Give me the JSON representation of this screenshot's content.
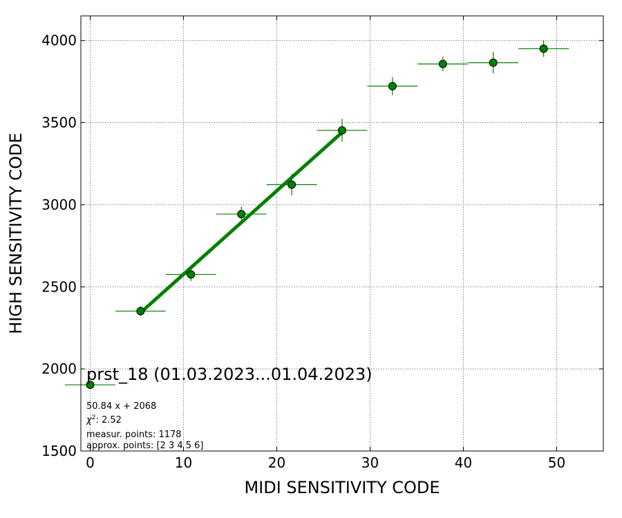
{
  "chart_data": {
    "type": "scatter",
    "xlabel": "MIDI SENSITIVITY CODE",
    "ylabel": "HIGH SENSITIVITY CODE",
    "xlim": [
      -1,
      55
    ],
    "ylim": [
      1500,
      4150
    ],
    "xticks": [
      0,
      10,
      20,
      30,
      40,
      50
    ],
    "yticks": [
      1500,
      2000,
      2500,
      3000,
      3500,
      4000
    ],
    "grid": true,
    "colors": {
      "marker": "#008000",
      "fit_line": "#008000",
      "error_bar": "#008000",
      "grid": "#808080"
    },
    "points": [
      {
        "x": 0.0,
        "y": 1903,
        "xerr": 2.7,
        "yerr": 0
      },
      {
        "x": 5.4,
        "y": 2352,
        "xerr": 2.7,
        "yerr": 30
      },
      {
        "x": 10.8,
        "y": 2575,
        "xerr": 2.7,
        "yerr": 40
      },
      {
        "x": 16.2,
        "y": 2943,
        "xerr": 2.7,
        "yerr": 45
      },
      {
        "x": 21.6,
        "y": 3122,
        "xerr": 2.7,
        "yerr": 65
      },
      {
        "x": 27.0,
        "y": 3453,
        "xerr": 2.7,
        "yerr": 70
      },
      {
        "x": 32.4,
        "y": 3722,
        "xerr": 2.7,
        "yerr": 55
      },
      {
        "x": 37.8,
        "y": 3857,
        "xerr": 2.7,
        "yerr": 45
      },
      {
        "x": 43.2,
        "y": 3865,
        "xerr": 2.7,
        "yerr": 65
      },
      {
        "x": 48.6,
        "y": 3950,
        "xerr": 2.7,
        "yerr": 50
      }
    ],
    "fit": {
      "slope": 50.84,
      "intercept": 2068,
      "x_range": [
        5.4,
        27.0
      ]
    },
    "annotations": {
      "title": "prst_18 (01.03.2023...01.04.2023)",
      "equation": "50.84 x + 2068",
      "chi2_symbol": "χ",
      "chi2_rest": ": 2.52",
      "measur_points": "measur. points: 1178",
      "approx_points": "approx. points: [2 3 4 5 6]"
    }
  }
}
